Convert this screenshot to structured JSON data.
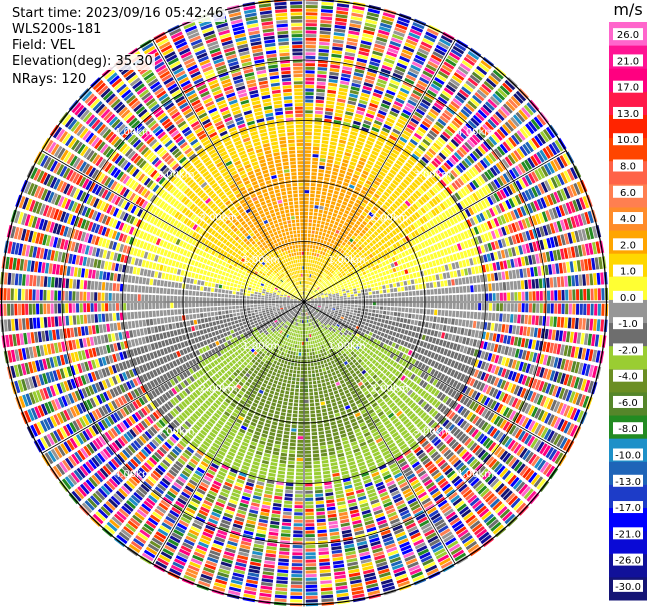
{
  "header": {
    "start_time": "Start time: 2023/09/16 05:42:46",
    "site": "WLS200s-181",
    "field": "Field: VEL",
    "elevation": "Elevation(deg): 35.30",
    "nrays": "NRays: 120"
  },
  "colorbar": {
    "unit": "m/s",
    "colors": [
      "#141475",
      "#111199",
      "#0a0ad6",
      "#0000ff",
      "#1d3cc8",
      "#1e64b8",
      "#1e90c8",
      "#228b22",
      "#55862a",
      "#6b8e23",
      "#9acd32",
      "#6e6e6e",
      "#969696",
      "#ffff33",
      "#ffd700",
      "#ffa500",
      "#ff8c2a",
      "#ff7f50",
      "#ff6347",
      "#ff4500",
      "#ff2400",
      "#ff1a4a",
      "#ff0080",
      "#ff1493",
      "#ff66cc"
    ],
    "tick_labels": [
      "-30.0",
      "-26.0",
      "-21.0",
      "-17.0",
      "-13.0",
      "-10.0",
      "-8.0",
      "-6.0",
      "-4.0",
      "-2.0",
      "-1.0",
      "0.0",
      "1.0",
      "2.0",
      "4.0",
      "6.0",
      "8.0",
      "10.0",
      "13.0",
      "17.0",
      "21.0",
      "26.0"
    ]
  },
  "range_labels": [
    "1.00km",
    "2.00km",
    "3.00km",
    "4.00km"
  ],
  "chart_data": {
    "type": "heatmap",
    "subtype": "polar PPI (plan position indicator)",
    "field": "VEL",
    "units": "m/s",
    "nrays": 120,
    "elevation_deg": 35.3,
    "range_rings_km": [
      1,
      2,
      3,
      4
    ],
    "range_max_km": 5,
    "color_scale_min": -30,
    "color_scale_max": 30,
    "description_of_pattern": {
      "positive_sector_azimuths_deg": [
        285,
        75
      ],
      "negative_sector_azimuths_deg": [
        105,
        255
      ],
      "near_zero_azimuths_deg": [
        90,
        270
      ],
      "peak_positive_ms": 8,
      "peak_negative_ms": -8,
      "clean_signal_limit_km": 3,
      "noise_beyond_km": 3
    }
  }
}
